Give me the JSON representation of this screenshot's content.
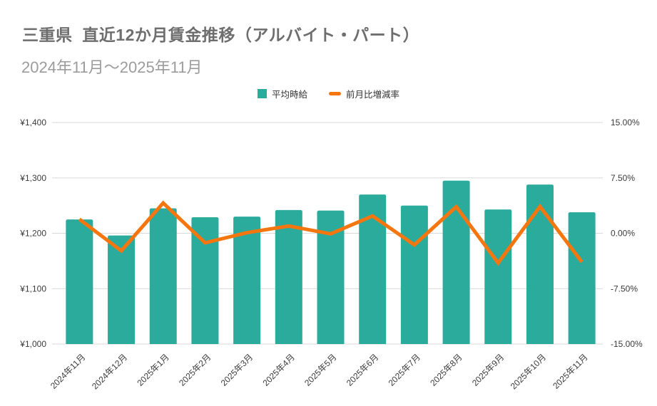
{
  "header": {
    "title": "三重県  直近12か月賃金推移（アルバイト・パート）",
    "subtitle": "2024年11月～2025年11月"
  },
  "legend": {
    "items": [
      {
        "label": "平均時給",
        "color": "#2bab9b",
        "shape": "square"
      },
      {
        "label": "前月比増減率",
        "color": "#f5760f",
        "shape": "dash"
      }
    ]
  },
  "chart_data": {
    "type": "bar",
    "combo": "bar+line",
    "title": "三重県  直近12か月賃金推移（アルバイト・パート）",
    "subtitle": "2024年11月～2025年11月",
    "categories": [
      "2024年11月",
      "2024年12月",
      "2025年1月",
      "2025年2月",
      "2025年3月",
      "2025年4月",
      "2025年5月",
      "2025年6月",
      "2025年7月",
      "2025年8月",
      "2025年9月",
      "2025年10月",
      "2025年11月"
    ],
    "series": [
      {
        "name": "平均時給",
        "type": "bar",
        "axis": "left",
        "unit": "¥",
        "color": "#2bab9b",
        "values": [
          1225,
          1196,
          1245,
          1229,
          1230,
          1242,
          1241,
          1270,
          1250,
          1295,
          1243,
          1288,
          1238
        ]
      },
      {
        "name": "前月比増減率",
        "type": "line",
        "axis": "right",
        "unit": "%",
        "color": "#f5760f",
        "values": [
          1.9,
          -2.37,
          4.1,
          -1.29,
          0.08,
          0.98,
          -0.08,
          2.34,
          -1.57,
          3.6,
          -4.02,
          3.62,
          -3.88
        ]
      }
    ],
    "y_left": {
      "min": 1000,
      "max": 1400,
      "tick_values": [
        1400,
        1300,
        1200,
        1100,
        1000
      ],
      "tick_labels": [
        "¥1,400",
        "¥1,300",
        "¥1,200",
        "¥1,100",
        "¥1,000"
      ]
    },
    "y_right": {
      "min": -15,
      "max": 15,
      "tick_values": [
        15,
        7.5,
        0,
        -7.5,
        -15
      ],
      "tick_labels": [
        "15.00%",
        "7.50%",
        "0.00%",
        "-7.50%",
        "-15.00%"
      ]
    },
    "grid": true,
    "legend_position": "top",
    "xlabel_rotation": -45
  },
  "colors": {
    "background": "#ffffff",
    "bar": "#2bab9b",
    "line": "#f5760f",
    "gridline": "#d9d9d9",
    "title_text": "#6e6e6e",
    "subtitle_text": "#9c9c9c",
    "tick_text": "#3b3b3b"
  }
}
